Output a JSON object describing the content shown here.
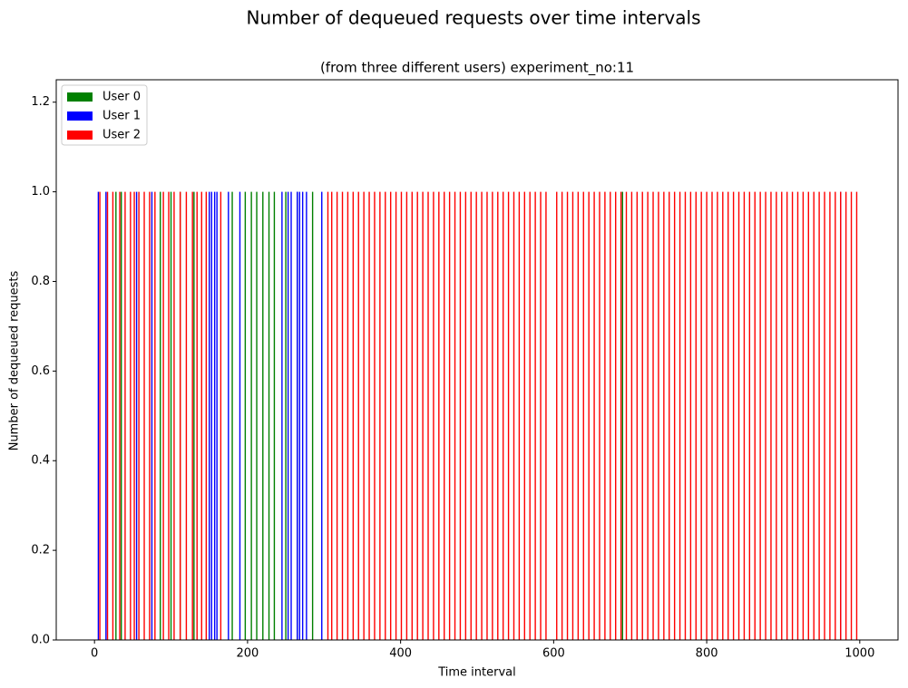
{
  "chart_data": {
    "type": "bar",
    "title": "Number of dequeued requests over time intervals",
    "subtitle": "(from three different users) experiment_no:11",
    "x_label": "Time interval",
    "y_label": "Number of dequeued requests",
    "xlim": [
      -50,
      1050
    ],
    "ylim": [
      0,
      1.25
    ],
    "xticks": [
      0,
      200,
      400,
      600,
      800,
      1000
    ],
    "yticks": [
      {
        "value": 0,
        "label": "0.0"
      },
      0.2,
      0.4,
      0.6,
      0.8,
      {
        "value": 1,
        "label": "1.0"
      },
      1.2
    ],
    "legend": "upper-left",
    "series": [
      {
        "name": "User 0",
        "color": "#008000",
        "x": [
          28,
          35,
          86,
          100,
          112,
          130,
          180,
          197,
          205,
          212,
          220,
          228,
          235,
          250,
          265,
          285,
          690
        ],
        "values": [
          1,
          1,
          1,
          1,
          1,
          1,
          1,
          1,
          1,
          1,
          1,
          1,
          1,
          1,
          1,
          1,
          1
        ]
      },
      {
        "name": "User 1",
        "color": "#0000ff",
        "x": [
          5,
          15,
          55,
          75,
          150,
          153,
          157,
          160,
          175,
          190,
          245,
          253,
          257,
          265,
          268,
          272,
          277,
          297,
          975
        ],
        "values": [
          1,
          1,
          1,
          1,
          1,
          1,
          1,
          1,
          1,
          1,
          1,
          1,
          1,
          1,
          1,
          1,
          1,
          1,
          1
        ]
      },
      {
        "name": "User 2",
        "color": "#ff0000",
        "x": [
          7,
          17,
          24,
          33,
          40,
          47,
          52,
          58,
          65,
          72,
          79,
          90,
          97,
          104,
          112,
          120,
          128,
          134,
          140,
          146,
          165,
          305,
          310,
          317,
          324,
          331,
          338,
          345,
          352,
          359,
          366,
          373,
          380,
          387,
          394,
          401,
          408,
          415,
          422,
          429,
          436,
          443,
          450,
          457,
          464,
          471,
          478,
          485,
          492,
          499,
          506,
          513,
          520,
          527,
          534,
          541,
          548,
          555,
          562,
          569,
          576,
          583,
          590,
          604,
          611,
          618,
          625,
          632,
          639,
          646,
          653,
          660,
          667,
          674,
          681,
          688,
          695,
          702,
          709,
          716,
          723,
          730,
          737,
          744,
          751,
          758,
          765,
          772,
          779,
          786,
          793,
          800,
          807,
          814,
          821,
          828,
          835,
          842,
          849,
          856,
          863,
          870,
          877,
          884,
          891,
          898,
          905,
          912,
          919,
          926,
          933,
          940,
          947,
          954,
          961,
          968,
          975,
          982,
          989,
          996
        ],
        "values": [
          1,
          1,
          1,
          1,
          1,
          1,
          1,
          1,
          1,
          1,
          1,
          1,
          1,
          1,
          1,
          1,
          1,
          1,
          1,
          1,
          1,
          1,
          1,
          1,
          1,
          1,
          1,
          1,
          1,
          1,
          1,
          1,
          1,
          1,
          1,
          1,
          1,
          1,
          1,
          1,
          1,
          1,
          1,
          1,
          1,
          1,
          1,
          1,
          1,
          1,
          1,
          1,
          1,
          1,
          1,
          1,
          1,
          1,
          1,
          1,
          1,
          1,
          1,
          1,
          1,
          1,
          1,
          1,
          1,
          1,
          1,
          1,
          1,
          1,
          1,
          1,
          1,
          1,
          1,
          1,
          1,
          1,
          1,
          1,
          1,
          1,
          1,
          1,
          1,
          1,
          1,
          1,
          1,
          1,
          1,
          1,
          1,
          1,
          1,
          1,
          1,
          1,
          1,
          1,
          1,
          1,
          1,
          1,
          1,
          1,
          1,
          1,
          1,
          1,
          1,
          1,
          1,
          1,
          1,
          1
        ]
      }
    ]
  }
}
